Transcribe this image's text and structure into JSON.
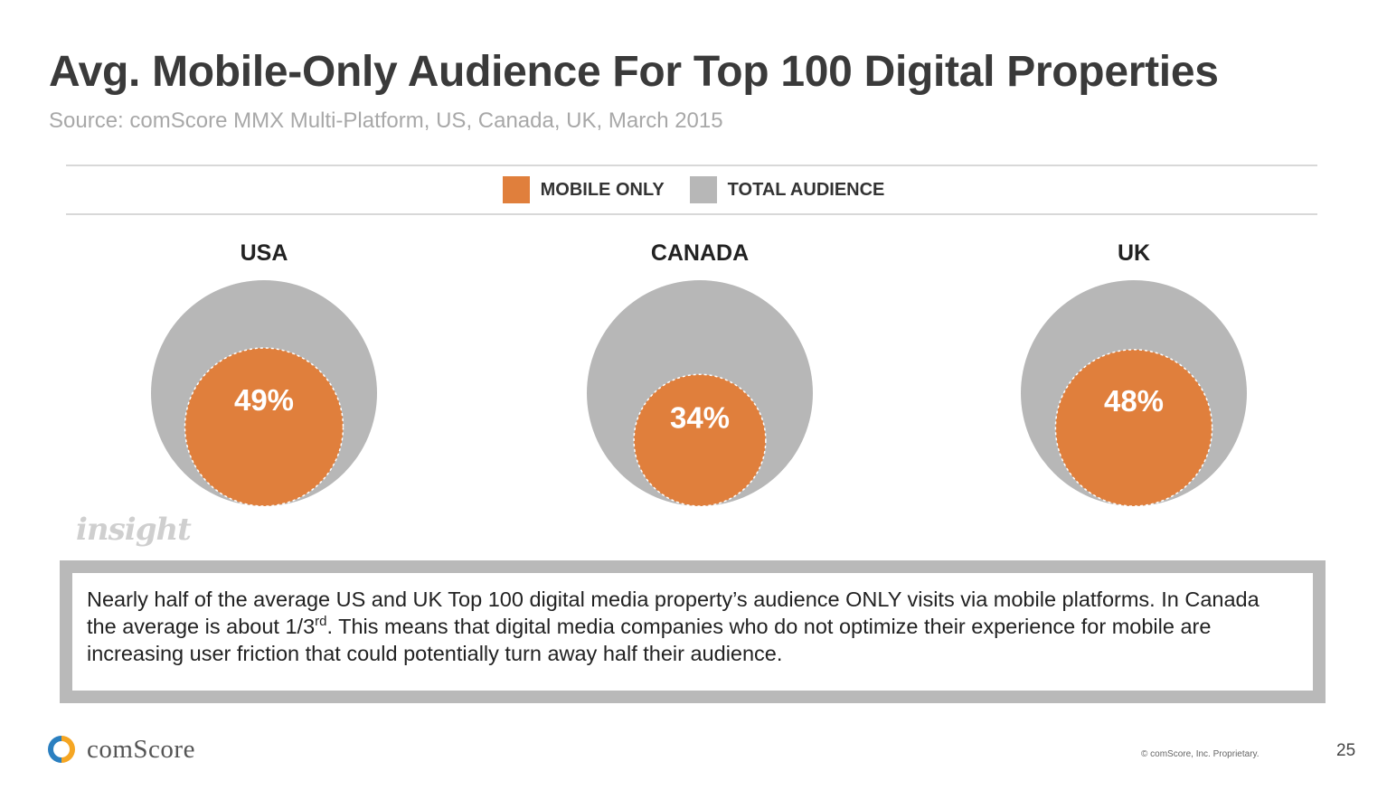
{
  "header": {
    "title": "Avg. Mobile-Only Audience For Top 100 Digital Properties",
    "subtitle": "Source: comScore MMX Multi-Platform, US, Canada, UK, March 2015"
  },
  "legend": {
    "items": [
      {
        "label": "MOBILE ONLY",
        "color": "#e07f3c"
      },
      {
        "label": "TOTAL AUDIENCE",
        "color": "#b7b7b7"
      }
    ]
  },
  "chart_data": {
    "type": "nested-circle",
    "categories": [
      "USA",
      "CANADA",
      "UK"
    ],
    "series": [
      {
        "name": "MOBILE ONLY",
        "values": [
          49,
          34,
          48
        ],
        "unit": "%"
      },
      {
        "name": "TOTAL AUDIENCE",
        "values": [
          100,
          100,
          100
        ],
        "unit": "%"
      }
    ],
    "value_labels": [
      "49%",
      "34%",
      "48%"
    ],
    "colors": {
      "mobile_only": "#e07f3c",
      "total_audience": "#b7b7b7"
    }
  },
  "watermark": "insight",
  "callout": {
    "text_before_sup": "Nearly half of the average US and UK Top 100 digital media property’s audience ONLY visits via mobile platforms. In Canada the average is about 1/3",
    "sup": "rd",
    "text_after_sup": ". This means that digital media companies who do not optimize their experience for mobile are increasing user friction that could potentially turn away half their audience."
  },
  "footer": {
    "brand": "comScore",
    "copyright": "© comScore, Inc. Proprietary.",
    "page_number": "25"
  }
}
